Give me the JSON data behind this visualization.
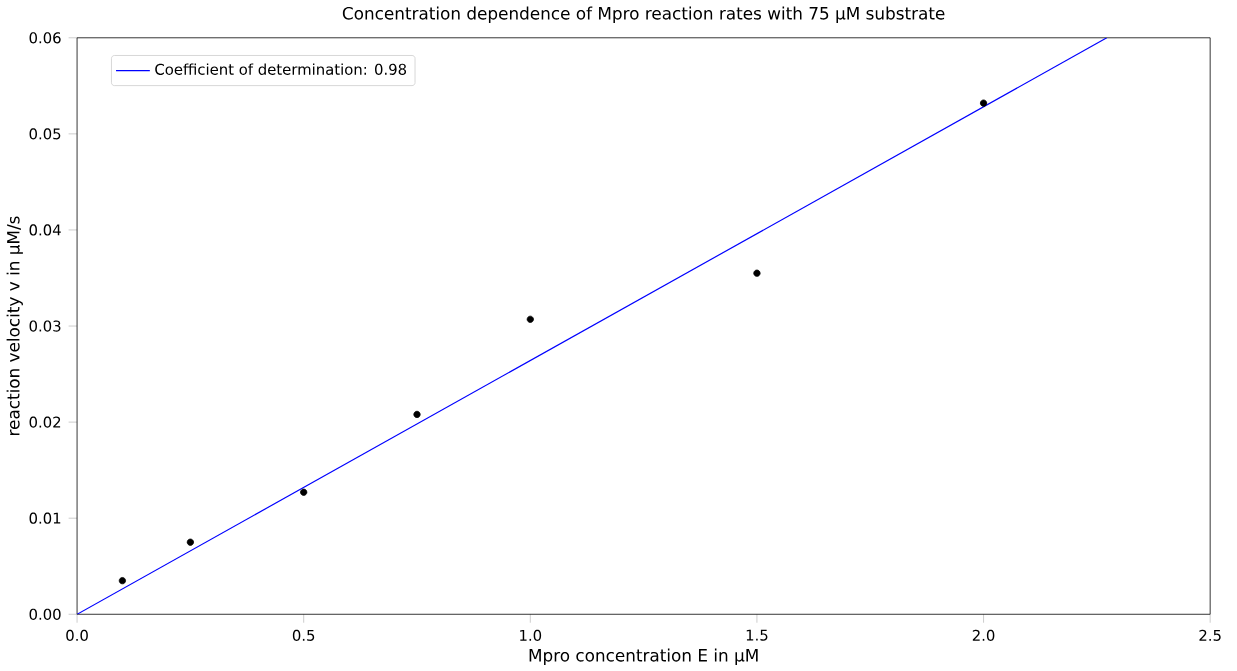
{
  "chart_data": {
    "type": "scatter",
    "title": "Concentration dependence of Mpro reaction rates with 75 µM substrate",
    "xlabel": "Mpro concentration E in µM",
    "ylabel": "reaction velocity v  in µM/s",
    "series": [
      {
        "color": "#000000",
        "marker": "circle",
        "x": [
          0.1,
          0.25,
          0.5,
          0.75,
          1.0,
          1.5,
          2.0
        ],
        "values": [
          0.0035,
          0.0075,
          0.0127,
          0.0208,
          0.0307,
          0.0355,
          0.0532
        ]
      },
      {
        "type": "line",
        "name": "Coefficient of determination: 0.98",
        "color": "#0000ff",
        "marker": "none",
        "line_style": "solid",
        "x": [
          0,
          2.272
        ],
        "values": [
          0,
          0.06
        ]
      }
    ],
    "xlim": [
      0,
      2.5
    ],
    "ylim": [
      0,
      0.06
    ],
    "xticks": [
      {
        "value": 0,
        "label": "0.0"
      },
      {
        "value": 0.5,
        "label": "0.5"
      },
      {
        "value": 1.0,
        "label": "1.0"
      },
      {
        "value": 1.5,
        "label": "1.5"
      },
      {
        "value": 2.0,
        "label": "2.0"
      },
      {
        "value": 2.5,
        "label": "2.5"
      }
    ],
    "yticks": [
      {
        "value": 0,
        "label": "0.00"
      },
      {
        "value": 0.01,
        "label": "0.01"
      },
      {
        "value": 0.02,
        "label": "0.02"
      },
      {
        "value": 0.03,
        "label": "0.03"
      },
      {
        "value": 0.04,
        "label": "0.04"
      },
      {
        "value": 0.05,
        "label": "0.05"
      },
      {
        "value": 0.06,
        "label": "0.06"
      }
    ],
    "legend": "top left",
    "grid": false
  }
}
